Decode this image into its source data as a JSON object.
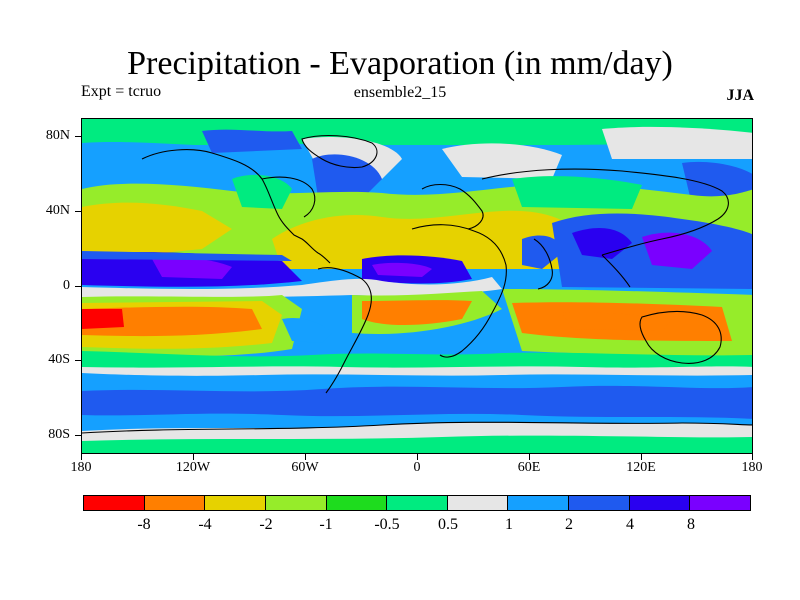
{
  "title": "Precipitation - Evaporation (in mm/day)",
  "subtitle_left": "Expt = tcruo",
  "subtitle_center": "ensemble2_15",
  "subtitle_right": "JJA",
  "lat_labels": [
    "80N",
    "40N",
    "0",
    "40S",
    "80S"
  ],
  "lon_labels": [
    "180",
    "120W",
    "60W",
    "0",
    "60E",
    "120E",
    "180"
  ],
  "legend": {
    "colors": [
      "#ff0000",
      "#ff7f00",
      "#e6d200",
      "#96ec2a",
      "#1edc1e",
      "#00eb80",
      "#e6e6e6",
      "#15a0ff",
      "#1f5aef",
      "#2a00f0",
      "#7a00ff"
    ],
    "labels": [
      "-8",
      "-4",
      "-2",
      "-1",
      "-0.5",
      "0.5",
      "1",
      "2",
      "4",
      "8"
    ]
  }
}
